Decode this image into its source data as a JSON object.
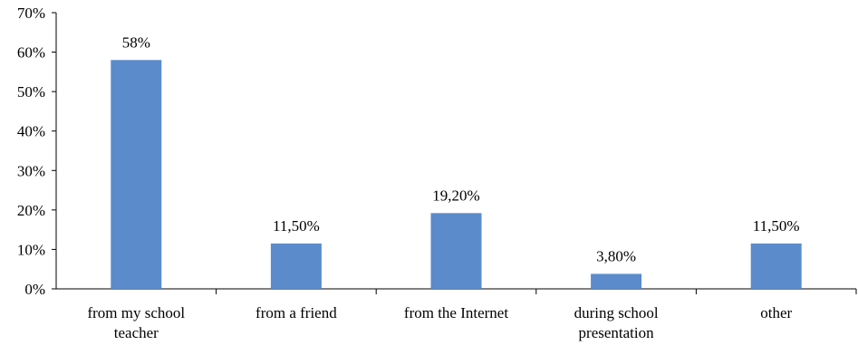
{
  "chart_data": {
    "type": "bar",
    "categories": [
      [
        "from my school",
        "teacher"
      ],
      [
        "from a friend"
      ],
      [
        "from the Internet"
      ],
      [
        "during school",
        "presentation"
      ],
      [
        "other"
      ]
    ],
    "values": [
      58,
      11.5,
      19.2,
      3.8,
      11.5
    ],
    "data_labels": [
      "58%",
      "11,50%",
      "19,20%",
      "3,80%",
      "11,50%"
    ],
    "ylim": [
      0,
      70
    ],
    "yticks": [
      0,
      10,
      20,
      30,
      40,
      50,
      60,
      70
    ],
    "ytick_labels": [
      "0%",
      "10%",
      "20%",
      "30%",
      "40%",
      "50%",
      "60%",
      "70%"
    ],
    "grid": false,
    "bar_color": "#5b8bcb"
  }
}
